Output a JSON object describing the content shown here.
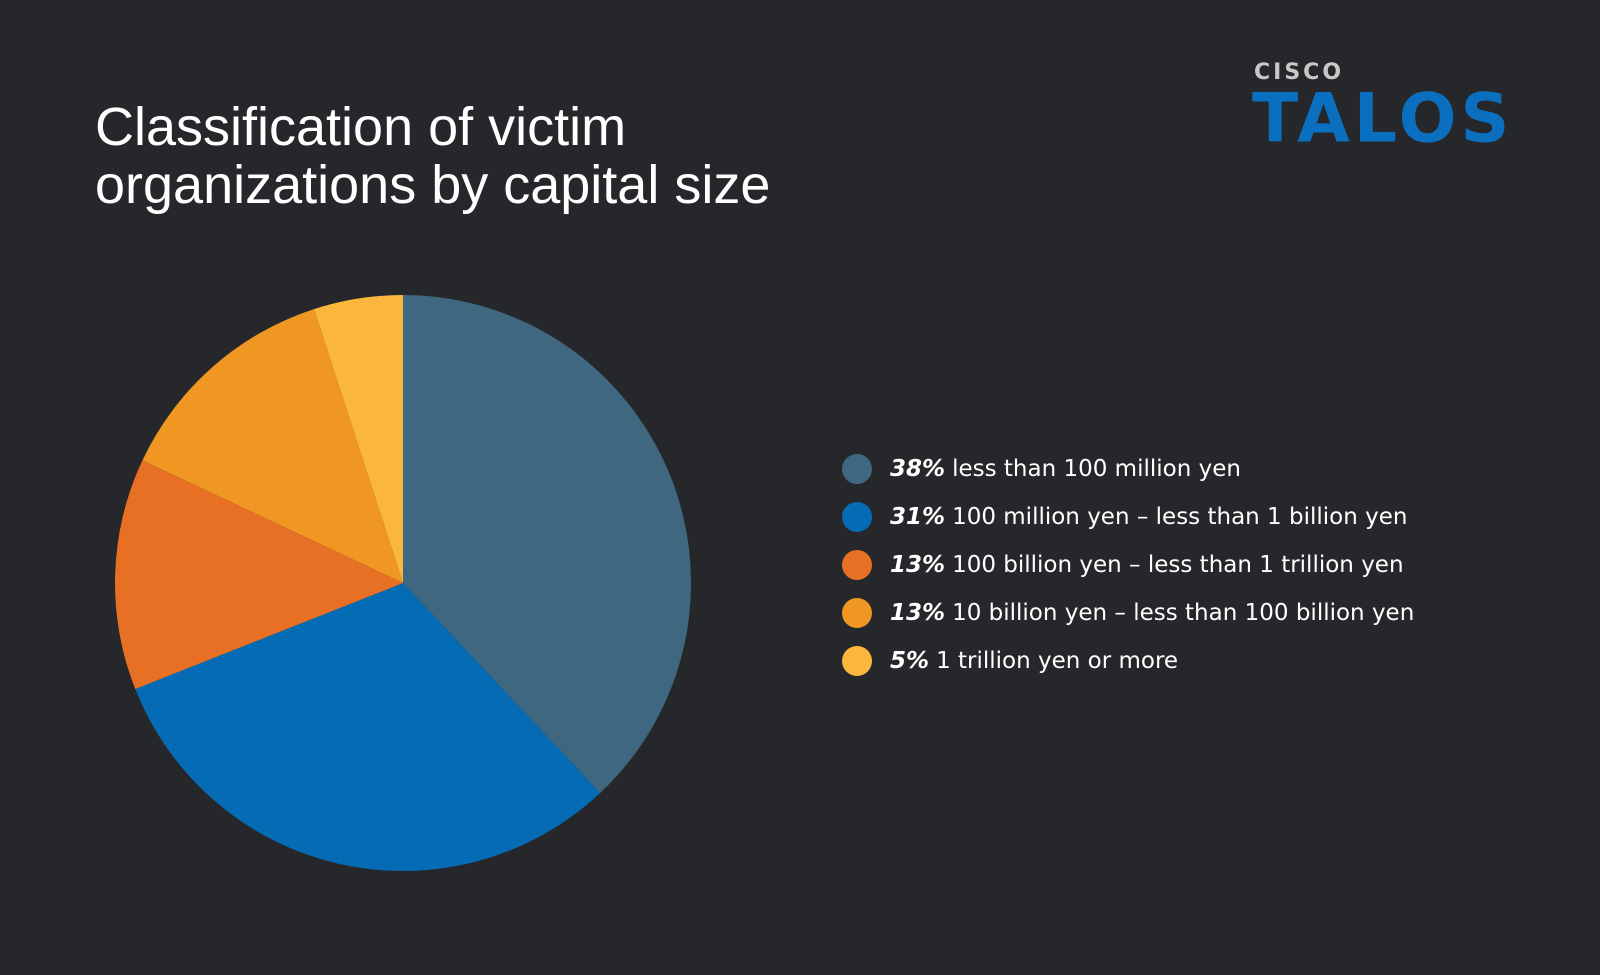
{
  "logo": {
    "company": "CISCO",
    "product": "TALOS"
  },
  "chart_data": {
    "type": "pie",
    "title": "Classification of victim organizations by capital size",
    "categories": [
      "less than 100 million yen",
      "100 million yen – less than 1 billion yen",
      "100 billion yen – less than 1 trillion yen",
      "10 billion yen – less than 100 billion yen",
      "1 trillion yen or more"
    ],
    "values": [
      38,
      31,
      13,
      13,
      5
    ],
    "value_labels": [
      "38%",
      "31%",
      "13%",
      "13%",
      "5%"
    ],
    "colors": [
      "#3f6880",
      "#066bb5",
      "#e87024",
      "#ef9722",
      "#fbb63d"
    ],
    "legend": "right"
  }
}
